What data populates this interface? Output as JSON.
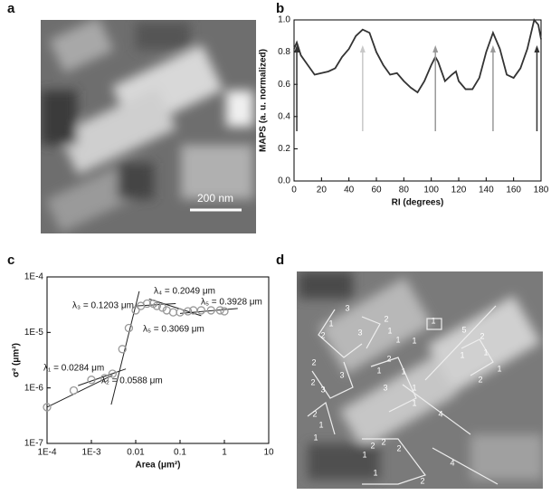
{
  "panel_labels": [
    "a",
    "b",
    "c",
    "d"
  ],
  "image_a": {
    "scale_bar": "200 nm"
  },
  "image_d": {
    "labels": [
      "3",
      "2",
      "1",
      "2",
      "3",
      "1",
      "1",
      "1",
      "1",
      "5",
      "2",
      "1",
      "1",
      "2",
      "1",
      "2",
      "2",
      "3",
      "3",
      "2",
      "1",
      "1",
      "3",
      "1",
      "1",
      "4",
      "2",
      "1",
      "1",
      "2",
      "2",
      "1",
      "2",
      "4",
      "1",
      "2"
    ]
  },
  "chart_data": [
    {
      "type": "line",
      "xlabel": "RI (degrees)",
      "ylabel": "MAPS (a. u. normalized)",
      "color": "#333333",
      "x": [
        0,
        2,
        5,
        10,
        15,
        20,
        25,
        30,
        35,
        40,
        45,
        50,
        55,
        60,
        65,
        70,
        75,
        80,
        85,
        90,
        95,
        100,
        103,
        105,
        110,
        115,
        118,
        120,
        125,
        130,
        135,
        140,
        145,
        150,
        155,
        160,
        165,
        170,
        175,
        178,
        180
      ],
      "values": [
        0.82,
        0.86,
        0.78,
        0.72,
        0.66,
        0.67,
        0.68,
        0.7,
        0.77,
        0.82,
        0.9,
        0.94,
        0.92,
        0.8,
        0.72,
        0.66,
        0.67,
        0.62,
        0.58,
        0.55,
        0.62,
        0.72,
        0.77,
        0.74,
        0.62,
        0.66,
        0.68,
        0.62,
        0.57,
        0.57,
        0.64,
        0.8,
        0.92,
        0.82,
        0.66,
        0.64,
        0.7,
        0.82,
        1.0,
        0.97,
        0.88
      ],
      "xlim": [
        0,
        180
      ],
      "xticks": [
        0,
        20,
        40,
        60,
        80,
        100,
        120,
        140,
        160,
        180
      ],
      "ylim": [
        0,
        1
      ],
      "yticks": [
        {
          "value": 0,
          "label": "0.0"
        },
        0.2,
        0.4,
        0.6,
        0.8,
        {
          "value": 1,
          "label": "1.0"
        }
      ],
      "arrows": [
        {
          "x": 2,
          "color": "#333333"
        },
        {
          "x": 50,
          "color": "#c8c8c8"
        },
        {
          "x": 103,
          "color": "#999999"
        },
        {
          "x": 145,
          "color": "#999999"
        },
        {
          "x": 177,
          "color": "#333333"
        }
      ]
    },
    {
      "type": "scatter",
      "xlabel": "Area (μm²)",
      "ylabel": "σ² (μm²)",
      "log_x": true,
      "log_y": true,
      "color": "#999999",
      "x": [
        0.0001,
        0.0004,
        0.001,
        0.002,
        0.003,
        0.005,
        0.007,
        0.01,
        0.013,
        0.018,
        0.025,
        0.03,
        0.04,
        0.05,
        0.07,
        0.1,
        0.15,
        0.2,
        0.3,
        0.5,
        0.8,
        1
      ],
      "values": [
        4.5e-07,
        9e-07,
        1.4e-06,
        1.5e-06,
        1.8e-06,
        5e-06,
        1.2e-05,
        2.5e-05,
        3e-05,
        3.3e-05,
        3.3e-05,
        3e-05,
        2.8e-05,
        2.5e-05,
        2.3e-05,
        2.3e-05,
        2.4e-05,
        2.5e-05,
        2.5e-05,
        2.5e-05,
        2.5e-05,
        2.4e-05
      ],
      "xlim": [
        0.0001,
        10
      ],
      "xticks": [
        {
          "value": 0.0001,
          "label": "1E-4"
        },
        {
          "value": 0.001,
          "label": "1E-3"
        },
        0.01,
        0.1,
        1,
        10
      ],
      "ylim": [
        1e-07,
        0.0001
      ],
      "yticks": [
        {
          "value": 1e-07,
          "label": "1E-7"
        },
        {
          "value": 1e-06,
          "label": "1E-6"
        },
        {
          "value": 1e-05,
          "label": "1E-5"
        },
        {
          "value": 0.0001,
          "label": "1E-4"
        }
      ],
      "fits": [
        {
          "x": [
            0.0001,
            0.003
          ],
          "y": [
            4.5e-07,
            1.7e-06
          ]
        },
        {
          "x": [
            0.0005,
            0.006
          ],
          "y": [
            1.1e-06,
            2.2e-06
          ]
        },
        {
          "x": [
            0.0028,
            0.012
          ],
          "y": [
            5e-07,
            5.5e-05
          ]
        },
        {
          "x": [
            0.01,
            0.08
          ],
          "y": [
            3e-05,
            3.3e-05
          ]
        },
        {
          "x": [
            0.02,
            0.3
          ],
          "y": [
            4e-05,
            2e-05
          ]
        },
        {
          "x": [
            0.1,
            2
          ],
          "y": [
            2.2e-05,
            2.7e-05
          ]
        }
      ],
      "annotations": [
        "λ₃ = 0.1203 μm",
        "λ₄ = 0.2049 μm",
        "λ₅ = 0.3928 μm",
        "λ₅ = 0.3069 μm",
        "λ₁ = 0.0284 μm",
        "λ₂ = 0.0588 μm"
      ]
    }
  ]
}
